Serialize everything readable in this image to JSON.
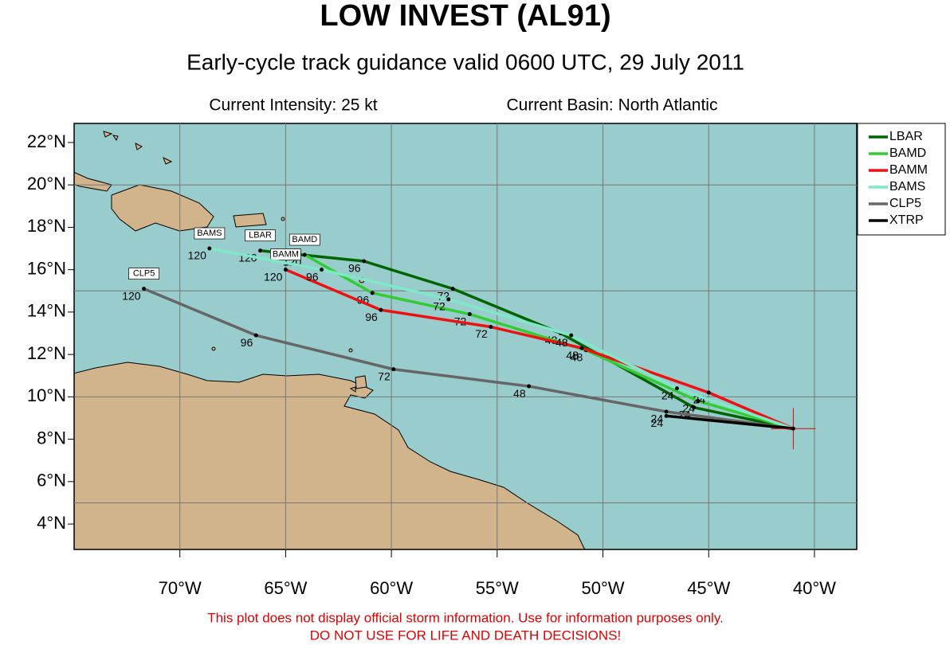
{
  "chart_data": {
    "type": "track-map",
    "title": "LOW INVEST (AL91)",
    "subtitle": "Early-cycle track guidance valid 0600 UTC, 29 July 2011",
    "intensity": "Current Intensity: 25 kt",
    "basin": "Current Basin: North Atlantic",
    "disclaimer": [
      "This plot does not display official storm information. Use for information purposes only.",
      "DO NOT USE FOR LIFE AND DEATH DECISIONS!"
    ],
    "xlim": [
      -75,
      -38
    ],
    "ylim": [
      2.8,
      22.9
    ],
    "xticks": [
      {
        "value": -70,
        "label": "70°W"
      },
      {
        "value": -65,
        "label": "65°W"
      },
      {
        "value": -60,
        "label": "60°W"
      },
      {
        "value": -55,
        "label": "55°W"
      },
      {
        "value": -50,
        "label": "50°W"
      },
      {
        "value": -45,
        "label": "45°W"
      },
      {
        "value": -40,
        "label": "40°W"
      }
    ],
    "yticks": [
      {
        "value": 4,
        "label": "4°N"
      },
      {
        "value": 6,
        "label": "6°N"
      },
      {
        "value": 8,
        "label": "8°N"
      },
      {
        "value": 10,
        "label": "10°N"
      },
      {
        "value": 12,
        "label": "12°N"
      },
      {
        "value": 14,
        "label": "14°N"
      },
      {
        "value": 16,
        "label": "16°N"
      },
      {
        "value": 18,
        "label": "18°N"
      },
      {
        "value": 20,
        "label": "20°N"
      },
      {
        "value": 22,
        "label": "22°N"
      }
    ],
    "ygrid": [
      5,
      10,
      15,
      20
    ],
    "grid": true,
    "legend": "outside-top-right",
    "start": {
      "lon": -41.0,
      "lat": 8.5
    },
    "series": [
      {
        "name": "LBAR",
        "color": "#006400",
        "hours": [
          24,
          48,
          72,
          96,
          120
        ],
        "lon": [
          -45.7,
          -52.0,
          -57.1,
          -61.3,
          -66.2
        ],
        "lat": [
          9.5,
          13.0,
          15.1,
          16.4,
          16.9
        ]
      },
      {
        "name": "BAMD",
        "color": "#33cc33",
        "hours": [
          24,
          48,
          72,
          96,
          120
        ],
        "lon": [
          -45.5,
          -50.8,
          -56.3,
          -60.9,
          -64.1
        ],
        "lat": [
          9.8,
          12.2,
          13.9,
          14.9,
          16.7
        ]
      },
      {
        "name": "BAMM",
        "color": "#ee1111",
        "hours": [
          24,
          48,
          72,
          96,
          120
        ],
        "lon": [
          -45.0,
          -51.0,
          -55.3,
          -60.5,
          -65.0
        ],
        "lat": [
          10.2,
          12.3,
          13.3,
          14.1,
          16.0
        ]
      },
      {
        "name": "BAMS",
        "color": "#7fe8c8",
        "hours": [
          24,
          48,
          72,
          96,
          120
        ],
        "lon": [
          -46.5,
          -51.5,
          -57.3,
          -63.3,
          -68.6
        ],
        "lat": [
          10.4,
          12.9,
          14.6,
          16.0,
          17.0
        ]
      },
      {
        "name": "CLP5",
        "color": "#666666",
        "hours": [
          24,
          48,
          72,
          96,
          120
        ],
        "lon": [
          -47.0,
          -53.5,
          -59.9,
          -66.4,
          -71.7
        ],
        "lat": [
          9.3,
          10.5,
          11.3,
          12.9,
          15.1
        ]
      },
      {
        "name": "XTRP",
        "color": "#000000",
        "hours": [
          24
        ],
        "lon": [
          -47.0
        ],
        "lat": [
          9.1
        ]
      }
    ]
  }
}
